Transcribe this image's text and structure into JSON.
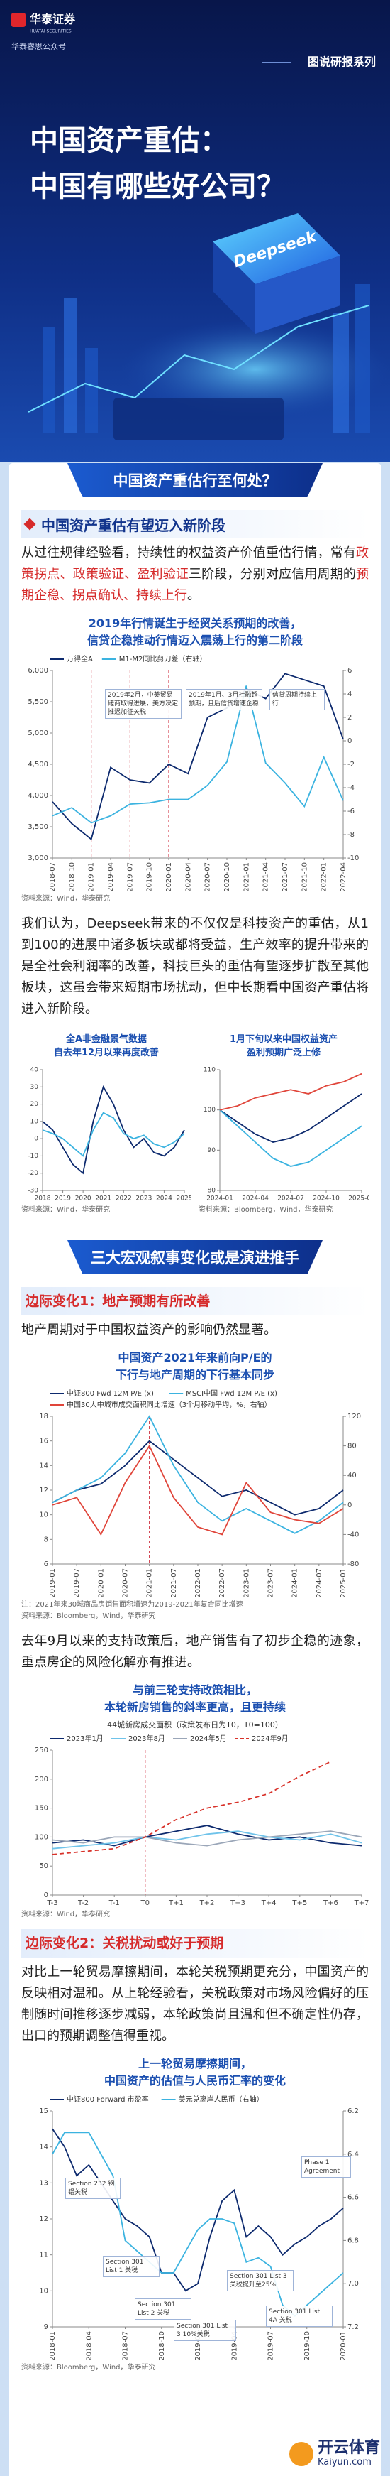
{
  "header": {
    "logo_cn": "华泰证券",
    "logo_en": "HUATAI SECURITIES",
    "account": "华泰睿思公众号",
    "series_tag": "图说研报系列",
    "title_lines": [
      "中国资产重估：",
      "中国有哪些好公司？"
    ],
    "illustration_label": "Deepseek"
  },
  "sections": [
    {
      "banner": "中国资产重估行至何处？",
      "subheading": "中国资产重估有望迈入新阶段",
      "paragraphs": [
        [
          {
            "text": "从过往规律经验看，持续性的权益资产价值重估行情，常有",
            "emphasis": false
          },
          {
            "text": "政策拐点、政策验证、盈利验证",
            "emphasis": true
          },
          {
            "text": "三阶段，分别对应信用周期的",
            "emphasis": false
          },
          {
            "text": "预期企稳、拐点确认、持续上行",
            "emphasis": true
          },
          {
            "text": "。",
            "emphasis": false
          }
        ],
        [
          {
            "text": "我们认为，Deepseek带来的不仅仅是科技资产的重估，从1到100的进展中诸多板块或都将受益，生产效率的提升带来的是全社会利润率的改善，科技巨头的重估有望逐步扩散至其他板块，这虽会带来短期市场扰动，但中长期看中国资产重估将进入新阶段。",
            "emphasis": false
          }
        ]
      ]
    },
    {
      "banner": "三大宏观叙事变化或是演进推手",
      "subsections": [
        {
          "heading": "边际变化1：地产预期有所改善",
          "paragraphs": [
            "地产周期对于中国权益资产的影响仍然显著。",
            "去年9月以来的支持政策后，地产销售有了初步企稳的迹象，重点房企的风险化解亦有推进。"
          ]
        },
        {
          "heading": "边际变化2：关税扰动或好于预期",
          "paragraphs": [
            "对比上一轮贸易摩擦期间，本轮关税预期更充分，中国资产的反映相对温和。从上轮经验看，关税政策对市场风险偏好的压制随时间推移逐步减弱，本轮政策尚且温和但不确定性仍存，出口的预期调整值得重视。"
          ]
        }
      ]
    }
  ],
  "watermark": {
    "cn": "开云体育",
    "en": "Kaiyun.com"
  },
  "chart_data": [
    {
      "type": "line",
      "title": [
        "2019年行情诞生于经贸关系预期的改善，",
        "信贷企稳推动行情迈入震荡上行的第二阶段"
      ],
      "categories": [
        "2018-07",
        "2018-10",
        "2019-01",
        "2019-04",
        "2019-07",
        "2019-10",
        "2020-01",
        "2020-04",
        "2020-07",
        "2020-10",
        "2021-01",
        "2021-04",
        "2021-07",
        "2021-10",
        "2022-01",
        "2022-04"
      ],
      "series": [
        {
          "name": "万得全A",
          "color": "#0d2a6e",
          "values": [
            3900,
            3550,
            3300,
            4450,
            4250,
            4200,
            4500,
            4350,
            5250,
            5400,
            5700,
            5550,
            5950,
            5850,
            5750,
            4900
          ]
        },
        {
          "name": "M1-M2同比剪刀差（右轴）",
          "color": "#3bb3e0",
          "axis": "y2",
          "values": [
            -6.4,
            -5.7,
            -7.0,
            -6.4,
            -5.4,
            -5.3,
            -5.0,
            -5.0,
            -3.8,
            -1.8,
            4.7,
            -1.9,
            -3.6,
            -5.6,
            -1.4,
            -5.1
          ]
        }
      ],
      "ylim": [
        3000,
        6000
      ],
      "yticks": [
        {
          "value": 3000,
          "label": "3,000"
        },
        {
          "value": 3500,
          "label": "3,500"
        },
        {
          "value": 4000,
          "label": "4,000"
        },
        {
          "value": 4500,
          "label": "4,500"
        },
        {
          "value": 5000,
          "label": "5,000"
        },
        {
          "value": 5500,
          "label": "5,500"
        },
        {
          "value": 6000,
          "label": "6,000"
        }
      ],
      "y2lim": [
        -10,
        6
      ],
      "y2ticks": [
        -10,
        -8,
        -6,
        -4,
        -2,
        0,
        2,
        4,
        6
      ],
      "annotations": [
        "2019年2月，中美贸易磋商取得进展，美方决定推迟加征关税",
        "2019年1月、3月社融超预期，且后信贷增速企稳",
        "信贷周期持续上行"
      ],
      "grid": false,
      "source": "资料来源：Wind，华泰研究"
    },
    {
      "type": "line",
      "title": [
        "全A非金融景气数据",
        "自去年12月以来再度改善"
      ],
      "categories": [
        "2018",
        null,
        "2019",
        null,
        "2020",
        null,
        "2021",
        null,
        "2022",
        null,
        "2023",
        null,
        "2024",
        null,
        "2025"
      ],
      "series": [
        {
          "color": "#0d2a6e",
          "values": [
            10,
            5,
            -5,
            -15,
            -20,
            10,
            30,
            20,
            5,
            -5,
            0,
            -8,
            -10,
            -5,
            5
          ]
        },
        {
          "color": "#3bb3e0",
          "values": [
            5,
            3,
            0,
            -5,
            -10,
            5,
            15,
            12,
            3,
            0,
            2,
            -3,
            -5,
            -2,
            3
          ]
        }
      ],
      "ylim": [
        -30,
        40
      ],
      "yticks": [
        -30,
        -20,
        -10,
        0,
        10,
        20,
        30,
        40
      ],
      "grid": false,
      "source": "资料来源：Wind，华泰研究"
    },
    {
      "type": "line",
      "title": [
        "1月下旬以来中国权益资产",
        "盈利预期广泛上修"
      ],
      "categories": [
        "2024-01",
        null,
        "2024-04",
        null,
        "2024-07",
        null,
        "2024-10",
        null,
        "2025-01"
      ],
      "series": [
        {
          "color": "#0d2a6e",
          "values": [
            100,
            97,
            94,
            92,
            93,
            95,
            98,
            101,
            104
          ]
        },
        {
          "color": "#3bb3e0",
          "values": [
            100,
            96,
            92,
            88,
            86,
            87,
            90,
            93,
            96
          ]
        },
        {
          "color": "#e0453a",
          "values": [
            100,
            101,
            103,
            104,
            105,
            104,
            106,
            107,
            109
          ]
        }
      ],
      "ylim": [
        80,
        110
      ],
      "yticks": [
        80,
        90,
        100,
        110
      ],
      "grid": false,
      "source": "资料来源：Bloomberg，Wind，华泰研究"
    },
    {
      "type": "line",
      "title": [
        "中国资产2021年来前向P/E的",
        "下行与地产周期的下行基本同步"
      ],
      "categories": [
        "2019-01",
        "2019-07",
        "2020-01",
        "2020-07",
        "2021-01",
        "2021-07",
        "2022-01",
        "2022-07",
        "2023-01",
        "2023-07",
        "2024-01",
        "2024-07",
        "2025-01"
      ],
      "series": [
        {
          "name": "中证800 Fwd 12M P/E (x)",
          "color": "#0d2a6e",
          "values": [
            11,
            12,
            12.5,
            14,
            16,
            14.5,
            13,
            11.5,
            12,
            11,
            10,
            10.5,
            12
          ]
        },
        {
          "name": "MSCI中国 Fwd 12M P/E (x)",
          "color": "#3bb3e0",
          "values": [
            11,
            12,
            13,
            15,
            18,
            14,
            11,
            9.5,
            10.5,
            9.5,
            8.5,
            9.5,
            11
          ]
        },
        {
          "name": "中国30大中城市成交面积同比增速（3个月移动平均，%，右轴）",
          "color": "#e0453a",
          "axis": "y2",
          "values": [
            0,
            10,
            -40,
            30,
            80,
            10,
            -30,
            -40,
            30,
            -10,
            -20,
            -25,
            -5
          ]
        }
      ],
      "ylim": [
        6,
        18
      ],
      "yticks": [
        6,
        8,
        10,
        12,
        14,
        16,
        18
      ],
      "y2lim": [
        -80,
        120
      ],
      "y2ticks": [
        -80,
        -40,
        0,
        40,
        80,
        120
      ],
      "grid": false,
      "note": "注：2021年来30城商品房销售面积增速为2019-2021年复合同比增速",
      "source": "资料来源：Bloomberg，Wind，华泰研究"
    },
    {
      "type": "line",
      "title": [
        "与前三轮支持政策相比，",
        "本轮新房销售的斜率更高，且更持续"
      ],
      "subtitle": "44城新房成交面积（政策发布日为T0，T0=100）",
      "categories": [
        "T-3",
        "T-2",
        "T-1",
        "T0",
        "T+1",
        "T+2",
        "T+3",
        "T+4",
        "T+5",
        "T+6",
        "T+7"
      ],
      "series": [
        {
          "name": "2023年1月",
          "color": "#0d2a6e",
          "values": [
            90,
            95,
            85,
            100,
            110,
            120,
            105,
            95,
            100,
            90,
            85
          ]
        },
        {
          "name": "2023年8月",
          "color": "#6fc3ea",
          "values": [
            80,
            85,
            90,
            100,
            95,
            105,
            110,
            100,
            95,
            105,
            90
          ]
        },
        {
          "name": "2024年5月",
          "color": "#9aa6b8",
          "values": [
            95,
            90,
            100,
            100,
            90,
            85,
            95,
            100,
            105,
            110,
            100
          ]
        },
        {
          "name": "2024年9月",
          "color": "#d8322a",
          "dash": true,
          "values": [
            70,
            75,
            80,
            100,
            130,
            150,
            160,
            175,
            205,
            230,
            null
          ]
        }
      ],
      "ylim": [
        0,
        250
      ],
      "yticks": [
        0,
        50,
        100,
        150,
        200,
        250
      ],
      "grid": false,
      "source": "资料来源：Wind，华泰研究"
    },
    {
      "type": "line",
      "title": [
        "上一轮贸易摩擦期间，",
        "中国资产的估值与人民币汇率的变化"
      ],
      "categories": [
        "2018-01",
        null,
        null,
        "2018-04",
        null,
        null,
        "2018-07",
        null,
        null,
        "2018-10",
        null,
        null,
        "2019-01",
        null,
        null,
        "2019-04",
        null,
        null,
        "2019-07",
        null,
        null,
        "2019-10",
        null,
        null,
        "2020-01"
      ],
      "series": [
        {
          "name": "中证800 Forward 市盈率",
          "color": "#0d2a6e",
          "values": [
            14.5,
            14,
            13.2,
            13.5,
            13,
            12.5,
            12,
            11.8,
            11.5,
            10.5,
            10.5,
            10,
            10.2,
            11.5,
            12.5,
            12.8,
            11.5,
            11.8,
            11.5,
            11,
            11.3,
            11.5,
            11.8,
            12,
            12.3
          ]
        },
        {
          "name": "美元兑离岸人民币（右轴）",
          "color": "#3bb3e0",
          "axis": "y2",
          "values": [
            6.4,
            6.3,
            6.3,
            6.3,
            6.4,
            6.5,
            6.8,
            6.85,
            6.9,
            6.95,
            6.95,
            6.85,
            6.75,
            6.7,
            6.7,
            6.72,
            6.9,
            6.88,
            6.92,
            7.1,
            7.15,
            7.1,
            7.05,
            7.0,
            6.95
          ]
        }
      ],
      "ylim": [
        9,
        15
      ],
      "yticks": [
        9,
        10,
        11,
        12,
        13,
        14,
        15
      ],
      "y2lim": [
        6.2,
        7.2
      ],
      "y2ticks": [
        6.2,
        6.4,
        6.6,
        6.8,
        {
          "value": 7,
          "label": "7.0"
        },
        7.2
      ],
      "y2_inverted": true,
      "annotations": [
        "Section 232 钢铝关税",
        "Section 301 List 1 关税",
        "Section 301 List 2 关税",
        "Section 301 List 3 10%关税",
        "Section 301 List 3 关税提升至25%",
        "Section 301 List 4A 关税",
        "Phase 1 Agreement"
      ],
      "grid": false,
      "source": "资料来源：Bloomberg，Wind，华泰研究"
    }
  ]
}
